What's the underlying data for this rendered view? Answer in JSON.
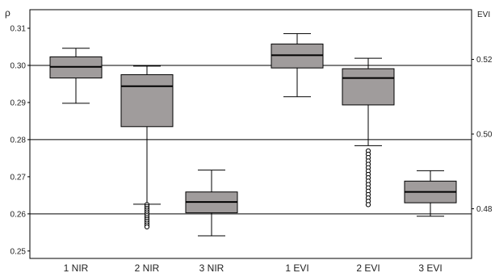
{
  "chart_data": {
    "type": "box",
    "title": "",
    "ylabel_left": "ρ",
    "ylabel_right": "EVI",
    "ylim_left": [
      0.248,
      0.315
    ],
    "ylim_right": [
      0.4667,
      0.5333
    ],
    "left_ticks": [
      "0.25",
      "0.26",
      "0.27",
      "0.28",
      "0.29",
      "0.30",
      "0.31"
    ],
    "right_ticks": [
      "0.48",
      "0.50",
      "0.52"
    ],
    "gridlines_left": [
      0.26,
      0.28,
      0.3
    ],
    "categories": [
      "1 NIR",
      "2 NIR",
      "3 NIR",
      "1 EVI",
      "2 EVI",
      "3 EVI"
    ],
    "boxes": [
      {
        "name": "1 NIR",
        "axis": "left",
        "whisker_low": 0.2898,
        "q1": 0.2966,
        "median": 0.2996,
        "q3": 0.3023,
        "whisker_high": 0.3046,
        "outliers_low": [],
        "outliers_high": []
      },
      {
        "name": "2 NIR",
        "axis": "left",
        "whisker_low": 0.2626,
        "q1": 0.2835,
        "median": 0.2944,
        "q3": 0.2975,
        "whisker_high": 0.2998,
        "outliers_low": [
          0.2625,
          0.262,
          0.2615,
          0.261,
          0.2605,
          0.26,
          0.2595,
          0.259,
          0.2585,
          0.258,
          0.2575,
          0.257,
          0.2565
        ],
        "outliers_high": []
      },
      {
        "name": "3 NIR",
        "axis": "left",
        "whisker_low": 0.2541,
        "q1": 0.2603,
        "median": 0.2632,
        "q3": 0.2659,
        "whisker_high": 0.2718,
        "outliers_low": [],
        "outliers_high": []
      },
      {
        "name": "1 EVI",
        "axis": "right",
        "whisker_low": 0.51,
        "q1": 0.5177,
        "median": 0.5211,
        "q3": 0.5241,
        "whisker_high": 0.5269,
        "outliers_low": [],
        "outliers_high": []
      },
      {
        "name": "2 EVI",
        "axis": "right",
        "whisker_low": 0.4969,
        "q1": 0.5078,
        "median": 0.515,
        "q3": 0.5175,
        "whisker_high": 0.5203,
        "outliers_low": [
          0.4955,
          0.4946,
          0.4937,
          0.4928,
          0.4919,
          0.491,
          0.4901,
          0.4892,
          0.4883,
          0.4874,
          0.4865,
          0.4856,
          0.4847,
          0.4838,
          0.4829,
          0.482,
          0.4811
        ],
        "outliers_high": []
      },
      {
        "name": "3 EVI",
        "axis": "right",
        "whisker_low": 0.478,
        "q1": 0.4816,
        "median": 0.4845,
        "q3": 0.4874,
        "whisker_high": 0.4902,
        "outliers_low": [],
        "outliers_high": []
      }
    ],
    "colors": {
      "box_fill": "#a09c9c",
      "line": "#000000",
      "grid": "#000000"
    },
    "grid": true,
    "legend": "none"
  }
}
